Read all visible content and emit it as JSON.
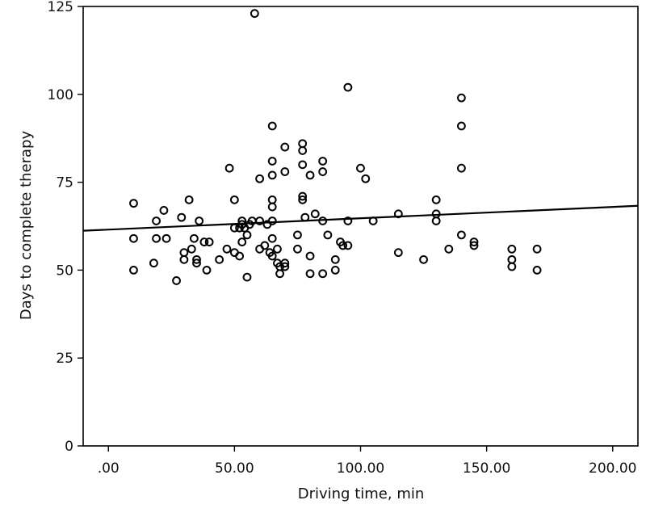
{
  "chart_data": {
    "type": "scatter",
    "title": "",
    "xlabel": "Driving time, min",
    "ylabel": "Days to complete therapy",
    "xlim": [
      -10,
      210
    ],
    "ylim": [
      0,
      125
    ],
    "x_ticks": [
      {
        "value": 0,
        "label": ".00"
      },
      {
        "value": 50,
        "label": "50.00"
      },
      {
        "value": 100,
        "label": "100.00"
      },
      {
        "value": 150,
        "label": "150.00"
      },
      {
        "value": 200,
        "label": "200.00"
      }
    ],
    "y_ticks": [
      {
        "value": 0,
        "label": "0"
      },
      {
        "value": 25,
        "label": "25"
      },
      {
        "value": 50,
        "label": "50"
      },
      {
        "value": 75,
        "label": "75"
      },
      {
        "value": 100,
        "label": "100"
      },
      {
        "value": 125,
        "label": "125"
      }
    ],
    "grid": false,
    "legend": "none",
    "point_color": "#000000",
    "fit_line": {
      "x": [
        -10,
        210
      ],
      "y": [
        61.2,
        68.3
      ]
    },
    "points": [
      [
        10,
        69
      ],
      [
        10,
        59
      ],
      [
        10,
        50
      ],
      [
        18,
        52
      ],
      [
        19,
        64
      ],
      [
        19,
        59
      ],
      [
        22,
        67
      ],
      [
        23,
        59
      ],
      [
        27,
        47
      ],
      [
        29,
        65
      ],
      [
        30,
        55
      ],
      [
        30,
        53
      ],
      [
        32,
        70
      ],
      [
        33,
        56
      ],
      [
        34,
        59
      ],
      [
        35,
        53
      ],
      [
        35,
        52
      ],
      [
        36,
        64
      ],
      [
        38,
        58
      ],
      [
        39,
        50
      ],
      [
        40,
        58
      ],
      [
        44,
        53
      ],
      [
        47,
        56
      ],
      [
        48,
        79
      ],
      [
        50,
        70
      ],
      [
        50,
        62
      ],
      [
        50,
        55
      ],
      [
        52,
        62
      ],
      [
        52,
        54
      ],
      [
        53,
        64
      ],
      [
        53,
        63
      ],
      [
        53,
        58
      ],
      [
        54,
        62
      ],
      [
        55,
        48
      ],
      [
        55,
        60
      ],
      [
        56,
        63
      ],
      [
        57,
        64
      ],
      [
        58,
        123
      ],
      [
        60,
        76
      ],
      [
        60,
        64
      ],
      [
        60,
        56
      ],
      [
        62,
        57
      ],
      [
        63,
        63
      ],
      [
        64,
        55
      ],
      [
        65,
        91
      ],
      [
        65,
        81
      ],
      [
        65,
        77
      ],
      [
        65,
        70
      ],
      [
        65,
        68
      ],
      [
        65,
        64
      ],
      [
        65,
        59
      ],
      [
        65,
        54
      ],
      [
        67,
        56
      ],
      [
        67,
        52
      ],
      [
        68,
        49
      ],
      [
        68,
        51
      ],
      [
        70,
        85
      ],
      [
        70,
        78
      ],
      [
        70,
        52
      ],
      [
        70,
        51
      ],
      [
        75,
        60
      ],
      [
        75,
        56
      ],
      [
        77,
        86
      ],
      [
        77,
        84
      ],
      [
        77,
        80
      ],
      [
        77,
        71
      ],
      [
        77,
        70
      ],
      [
        78,
        65
      ],
      [
        80,
        77
      ],
      [
        80,
        49
      ],
      [
        80,
        54
      ],
      [
        82,
        66
      ],
      [
        85,
        81
      ],
      [
        85,
        78
      ],
      [
        85,
        64
      ],
      [
        85,
        49
      ],
      [
        87,
        60
      ],
      [
        90,
        53
      ],
      [
        90,
        50
      ],
      [
        92,
        58
      ],
      [
        93,
        57
      ],
      [
        95,
        102
      ],
      [
        95,
        64
      ],
      [
        95,
        57
      ],
      [
        100,
        79
      ],
      [
        102,
        76
      ],
      [
        105,
        64
      ],
      [
        115,
        66
      ],
      [
        115,
        55
      ],
      [
        125,
        53
      ],
      [
        130,
        70
      ],
      [
        130,
        66
      ],
      [
        130,
        64
      ],
      [
        135,
        56
      ],
      [
        140,
        99
      ],
      [
        140,
        91
      ],
      [
        140,
        79
      ],
      [
        140,
        60
      ],
      [
        145,
        58
      ],
      [
        145,
        57
      ],
      [
        160,
        56
      ],
      [
        160,
        53
      ],
      [
        160,
        51
      ],
      [
        170,
        56
      ],
      [
        170,
        50
      ]
    ]
  }
}
